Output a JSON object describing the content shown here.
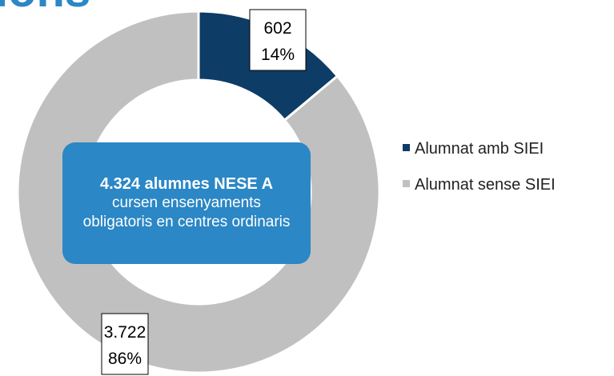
{
  "chart_data": {
    "type": "donut",
    "title": "ions",
    "categories": [
      "Alumnat amb SIEI",
      "Alumnat sense SIEI"
    ],
    "values": [
      602,
      3722
    ],
    "value_labels": [
      "602",
      "3.722"
    ],
    "percentages": [
      14,
      86
    ],
    "percent_labels": [
      "14%",
      "86%"
    ],
    "colors": [
      "#0d3c66",
      "#c0c0c0"
    ],
    "center_title": "4.324 alumnes NESE A",
    "center_text": "cursen ensenyaments obligatoris en centres ordinaris",
    "legend": "right"
  }
}
